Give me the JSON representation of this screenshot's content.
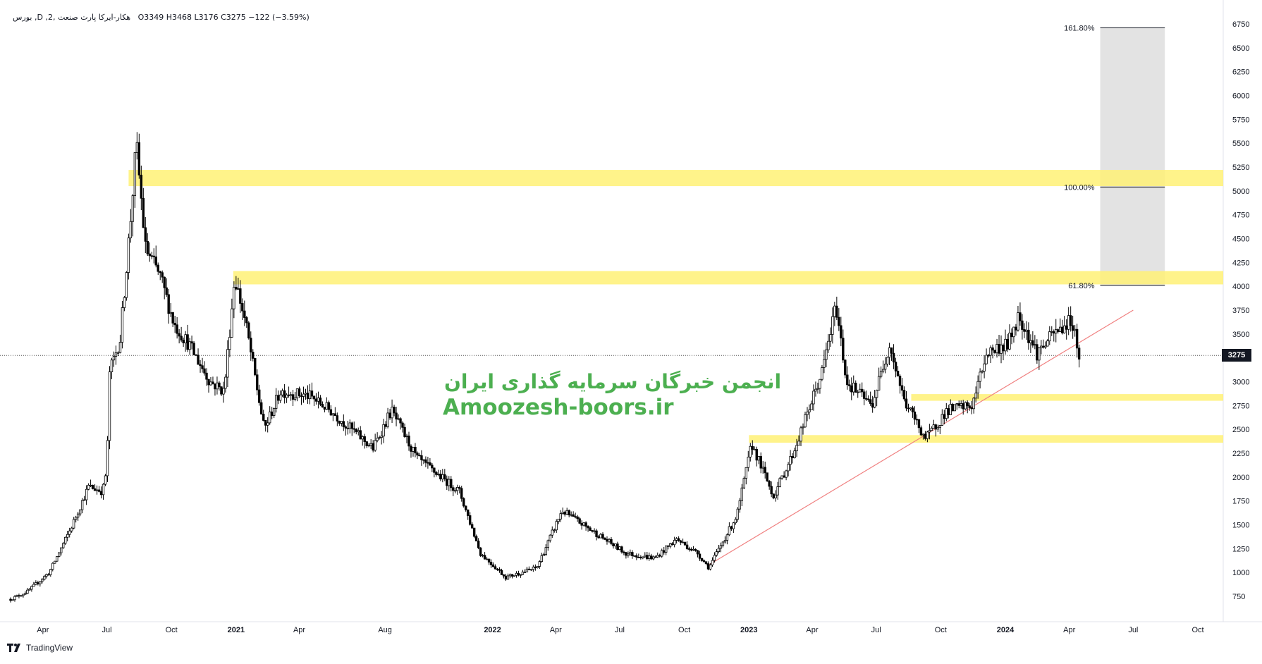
{
  "header": {
    "symbol_line": "بورس ,D ,هکار-ایرکا پارت صنعت ,2",
    "ohlc": "O3349  H3468  L3176  C3275  −122 (−3.59%)"
  },
  "watermark": {
    "persian": "انجمن خبرگان سرمایه گذاری ایران",
    "site": "Amoozesh-boors.ir"
  },
  "brand": {
    "label": "TradingView"
  },
  "last_price_label": "3275",
  "chart_data": {
    "type": "candlestick",
    "price_axis": {
      "min": 750,
      "max": 6750,
      "ticks": [
        750,
        1000,
        1250,
        1500,
        1750,
        2000,
        2250,
        2500,
        2750,
        3000,
        3250,
        3500,
        3750,
        4000,
        4250,
        4500,
        4750,
        5000,
        5250,
        5500,
        5750,
        6000,
        6250,
        6500,
        6750
      ]
    },
    "time_axis": {
      "labels": [
        "Apr",
        "Jul",
        "Oct",
        "2021",
        "Apr",
        "Aug",
        "2022",
        "Apr",
        "Jul",
        "Oct",
        "2023",
        "Apr",
        "Jul",
        "Oct",
        "2024",
        "Apr",
        "Jul",
        "Oct"
      ],
      "bold": [
        "2021",
        "2022",
        "2023",
        "2024"
      ]
    },
    "last_price": 3275,
    "approx_close_path": [
      {
        "d": "2020-02-15",
        "p": 720
      },
      {
        "d": "2020-03-10",
        "p": 800
      },
      {
        "d": "2020-04-10",
        "p": 1000
      },
      {
        "d": "2020-05-10",
        "p": 1450
      },
      {
        "d": "2020-06-05",
        "p": 1900
      },
      {
        "d": "2020-06-25",
        "p": 1850
      },
      {
        "d": "2020-07-01",
        "p": 2100
      },
      {
        "d": "2020-07-05",
        "p": 3100
      },
      {
        "d": "2020-07-20",
        "p": 3450
      },
      {
        "d": "2020-08-05",
        "p": 4800
      },
      {
        "d": "2020-08-12",
        "p": 5500
      },
      {
        "d": "2020-08-25",
        "p": 4400
      },
      {
        "d": "2020-09-15",
        "p": 4100
      },
      {
        "d": "2020-10-05",
        "p": 3600
      },
      {
        "d": "2020-10-25",
        "p": 3400
      },
      {
        "d": "2020-11-25",
        "p": 3000
      },
      {
        "d": "2020-12-15",
        "p": 2900
      },
      {
        "d": "2020-12-30",
        "p": 4100
      },
      {
        "d": "2021-01-15",
        "p": 3600
      },
      {
        "d": "2021-02-10",
        "p": 2500
      },
      {
        "d": "2021-03-05",
        "p": 2900
      },
      {
        "d": "2021-04-15",
        "p": 2850
      },
      {
        "d": "2021-05-15",
        "p": 2700
      },
      {
        "d": "2021-07-15",
        "p": 2300
      },
      {
        "d": "2021-08-10",
        "p": 2700
      },
      {
        "d": "2021-09-15",
        "p": 2200
      },
      {
        "d": "2021-11-15",
        "p": 1850
      },
      {
        "d": "2021-12-15",
        "p": 1200
      },
      {
        "d": "2022-01-20",
        "p": 950
      },
      {
        "d": "2022-03-05",
        "p": 1050
      },
      {
        "d": "2022-04-10",
        "p": 1650
      },
      {
        "d": "2022-05-20",
        "p": 1450
      },
      {
        "d": "2022-07-10",
        "p": 1200
      },
      {
        "d": "2022-08-20",
        "p": 1150
      },
      {
        "d": "2022-09-20",
        "p": 1350
      },
      {
        "d": "2022-10-20",
        "p": 1200
      },
      {
        "d": "2022-11-05",
        "p": 1050
      },
      {
        "d": "2022-12-15",
        "p": 1600
      },
      {
        "d": "2023-01-05",
        "p": 2350
      },
      {
        "d": "2023-02-05",
        "p": 1800
      },
      {
        "d": "2023-03-05",
        "p": 2250
      },
      {
        "d": "2023-04-15",
        "p": 3100
      },
      {
        "d": "2023-05-05",
        "p": 3800
      },
      {
        "d": "2023-05-20",
        "p": 3000
      },
      {
        "d": "2023-06-25",
        "p": 2750
      },
      {
        "d": "2023-07-20",
        "p": 3400
      },
      {
        "d": "2023-08-10",
        "p": 2800
      },
      {
        "d": "2023-09-10",
        "p": 2400
      },
      {
        "d": "2023-10-10",
        "p": 2700
      },
      {
        "d": "2023-11-15",
        "p": 2750
      },
      {
        "d": "2023-12-05",
        "p": 3300
      },
      {
        "d": "2024-01-05",
        "p": 3400
      },
      {
        "d": "2024-01-20",
        "p": 3700
      },
      {
        "d": "2024-02-15",
        "p": 3300
      },
      {
        "d": "2024-03-10",
        "p": 3500
      },
      {
        "d": "2024-04-05",
        "p": 3650
      },
      {
        "d": "2024-04-15",
        "p": 3275
      }
    ],
    "highlight_zones": [
      {
        "from": 5050,
        "to": 5220
      },
      {
        "from": 4020,
        "to": 4160
      },
      {
        "from": 2800,
        "to": 2870
      },
      {
        "from": 2360,
        "to": 2440
      }
    ],
    "fib_levels": [
      {
        "label": "161.80%",
        "price": 6710
      },
      {
        "label": "100.00%",
        "price": 5040
      },
      {
        "label": "61.80%",
        "price": 4010
      }
    ],
    "trendline": {
      "from": {
        "d": "2022-11-05",
        "p": 1080
      },
      "to": {
        "d": "2024-07-01",
        "p": 3750
      }
    },
    "colors": {
      "candle": "#000000",
      "zone": "#fff176",
      "fib_box": "#e3e3e3",
      "trendline": "#f08080",
      "dotted": "#555555",
      "watermark": "#4caf50"
    }
  }
}
